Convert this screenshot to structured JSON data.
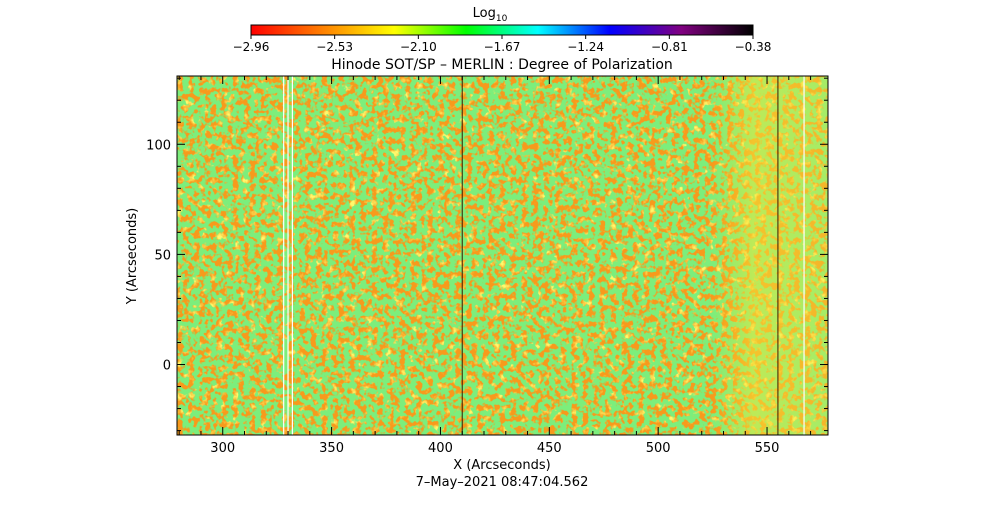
{
  "chart_data": {
    "type": "heatmap",
    "title": "Hinode SOT/SP – MERLIN : Degree of Polarization",
    "xlabel": "X (Arcseconds)",
    "ylabel": "Y (Arcseconds)",
    "xlim": [
      279,
      578
    ],
    "ylim": [
      -32,
      131
    ],
    "x_ticks": [
      300,
      350,
      400,
      450,
      500,
      550
    ],
    "y_ticks": [
      0,
      50,
      100
    ],
    "x_tick_labels": [
      "300",
      "350",
      "400",
      "450",
      "500",
      "550"
    ],
    "y_tick_labels": [
      "0",
      "50",
      "100"
    ],
    "timestamp": "7–May–2021 08:47:04.562",
    "colorbar": {
      "label_base": "Log",
      "label_sub": "10",
      "min": -2.96,
      "max": -0.38,
      "ticks": [
        -2.96,
        -2.53,
        -2.1,
        -1.67,
        -1.24,
        -0.81,
        -0.38
      ],
      "tick_labels": [
        "−2.96",
        "−2.53",
        "−2.10",
        "−1.67",
        "−1.24",
        "−0.81",
        "−0.38"
      ],
      "colors": [
        "#ff0000",
        "#ff8000",
        "#ffff00",
        "#00ff00",
        "#00ffff",
        "#0000ff",
        "#800080",
        "#000000"
      ]
    },
    "field": {
      "typical_log10": -2.7,
      "background_color": "#f79a1c",
      "bright_region_x_range": [
        525,
        578
      ],
      "dark_lines_x": [
        410,
        555
      ],
      "gap_lines_x": [
        328,
        330,
        332,
        567
      ]
    }
  }
}
